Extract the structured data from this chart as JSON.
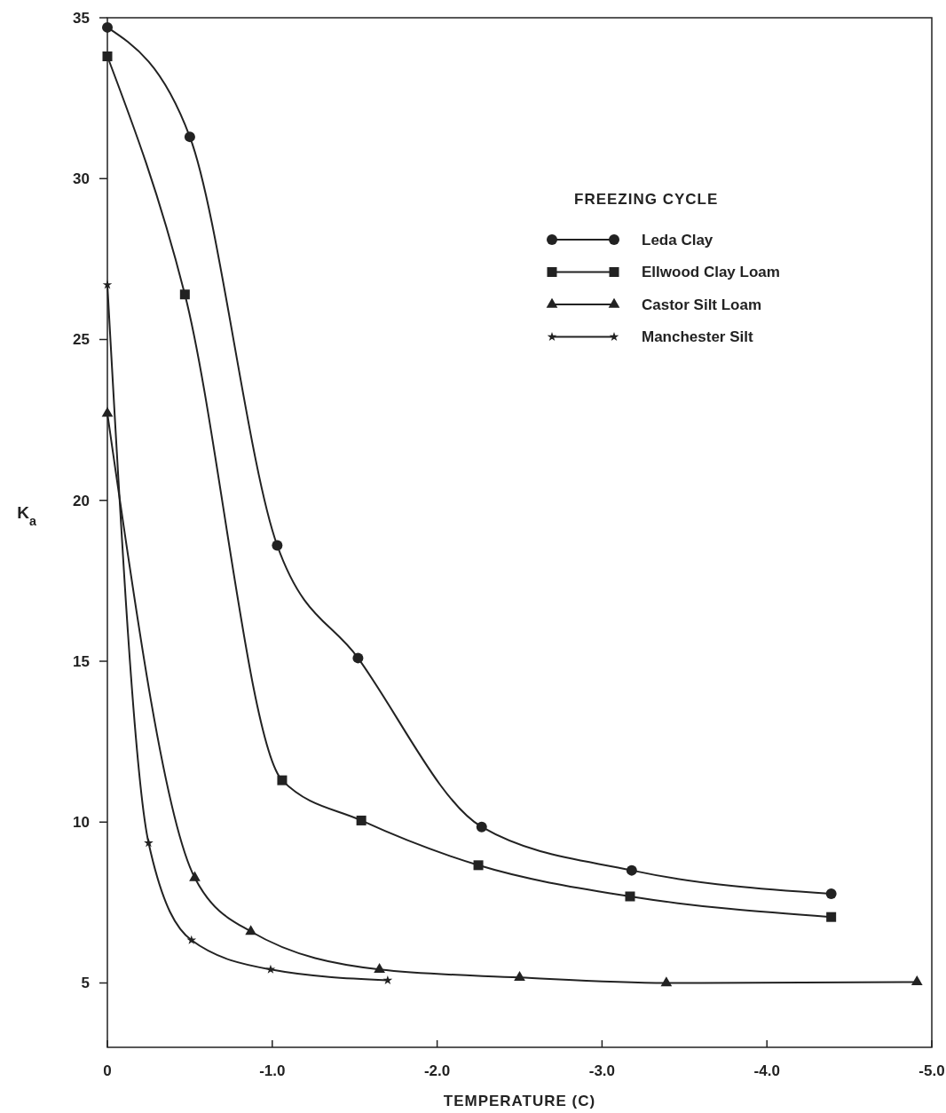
{
  "chart_data": {
    "type": "line",
    "xlabel": "TEMPERATURE (C)",
    "ylabel": "K$_{a}$",
    "legend_title": "FREEZING CYCLE",
    "legend": "top right",
    "grid": false,
    "line_style": "solid",
    "xlim": [
      0,
      -5
    ],
    "xticks": [
      0,
      {
        "value": -1,
        "label": "-1.0"
      },
      {
        "value": -2,
        "label": "-2.0"
      },
      {
        "value": -3,
        "label": "-3.0"
      },
      {
        "value": -4,
        "label": "-4.0"
      },
      {
        "value": -5,
        "label": "-5.0"
      }
    ],
    "ylim": [
      3,
      35
    ],
    "yticks": [
      5,
      10,
      15,
      20,
      25,
      30,
      35
    ],
    "series": [
      {
        "name": "Leda Clay",
        "color": "#222222",
        "marker": "circle",
        "x": [
          0,
          -0.5,
          -1.03,
          -1.52,
          -2.27,
          -3.18,
          -4.39
        ],
        "values": [
          34.7,
          31.3,
          18.6,
          15.1,
          9.85,
          8.5,
          7.77
        ]
      },
      {
        "name": "Ellwood Clay Loam",
        "color": "#222222",
        "marker": "square",
        "x": [
          0,
          -0.47,
          -1.06,
          -1.54,
          -2.25,
          -3.17,
          -4.39
        ],
        "values": [
          33.8,
          26.4,
          11.3,
          10.05,
          8.66,
          7.69,
          7.05
        ]
      },
      {
        "name": "Castor Silt Loam",
        "color": "#222222",
        "marker": "triangle",
        "x": [
          0,
          -0.53,
          -0.87,
          -1.65,
          -2.5,
          -3.39,
          -4.91
        ],
        "values": [
          22.7,
          8.27,
          6.6,
          5.42,
          5.17,
          5.0,
          5.03
        ]
      },
      {
        "name": "Manchester Silt",
        "color": "#222222",
        "marker": "star",
        "x": [
          0,
          -0.25,
          -0.51,
          -0.99,
          -1.7
        ],
        "values": [
          26.7,
          9.35,
          6.33,
          5.42,
          5.08
        ]
      }
    ]
  }
}
